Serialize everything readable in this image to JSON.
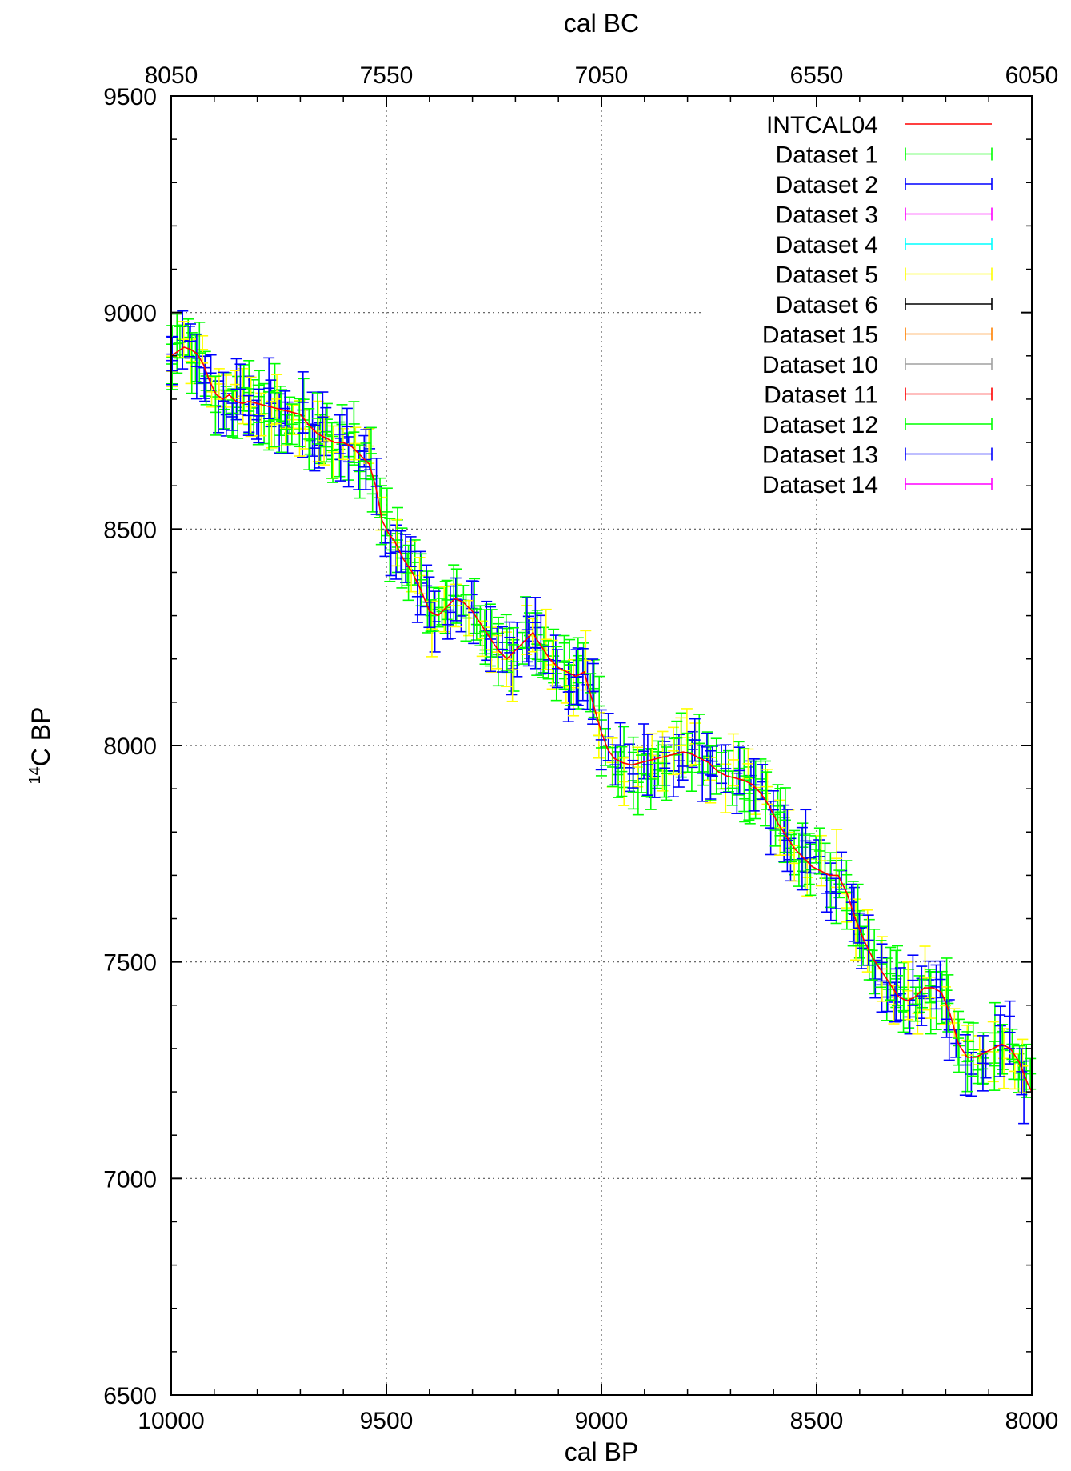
{
  "chart_data": {
    "type": "line",
    "xlabel": "cal BP",
    "x2label": "cal BC",
    "ylabel_main": "C BP",
    "ylabel_sup": "14",
    "xlim": [
      10000,
      8000
    ],
    "ylim": [
      6500,
      9500
    ],
    "x_ticks": [
      10000,
      9500,
      9000,
      8500,
      8000
    ],
    "x2_ticks": [
      8050,
      7550,
      7050,
      6550,
      6050
    ],
    "y_ticks": [
      6500,
      7000,
      7500,
      8000,
      8500,
      9000,
      9500
    ],
    "grid": true,
    "legend_position": "top-right",
    "series": [
      {
        "name": "INTCAL04",
        "color": "#ff0000",
        "kind": "line",
        "x": [
          10000,
          9985,
          9970,
          9955,
          9940,
          9925,
          9910,
          9895,
          9880,
          9865,
          9850,
          9835,
          9820,
          9800,
          9780,
          9760,
          9740,
          9720,
          9700,
          9680,
          9660,
          9640,
          9620,
          9600,
          9580,
          9560,
          9540,
          9525,
          9510,
          9495,
          9480,
          9460,
          9440,
          9420,
          9400,
          9380,
          9360,
          9340,
          9320,
          9300,
          9280,
          9260,
          9240,
          9220,
          9200,
          9180,
          9160,
          9140,
          9120,
          9100,
          9080,
          9060,
          9040,
          9020,
          9000,
          8985,
          8970,
          8950,
          8930,
          8910,
          8890,
          8870,
          8850,
          8830,
          8810,
          8790,
          8770,
          8750,
          8730,
          8710,
          8690,
          8670,
          8650,
          8630,
          8610,
          8590,
          8570,
          8550,
          8530,
          8510,
          8490,
          8470,
          8450,
          8430,
          8410,
          8390,
          8370,
          8350,
          8330,
          8310,
          8290,
          8270,
          8250,
          8230,
          8210,
          8190,
          8170,
          8150,
          8130,
          8110,
          8090,
          8070,
          8050,
          8030,
          8010,
          8000
        ],
        "y": [
          8900,
          8910,
          8920,
          8915,
          8905,
          8880,
          8840,
          8810,
          8800,
          8810,
          8795,
          8790,
          8795,
          8790,
          8785,
          8780,
          8775,
          8770,
          8765,
          8740,
          8720,
          8710,
          8700,
          8700,
          8690,
          8670,
          8650,
          8600,
          8520,
          8490,
          8470,
          8430,
          8400,
          8360,
          8310,
          8300,
          8320,
          8340,
          8330,
          8310,
          8280,
          8250,
          8220,
          8200,
          8220,
          8240,
          8260,
          8230,
          8200,
          8180,
          8170,
          8160,
          8170,
          8100,
          8030,
          7990,
          7970,
          7960,
          7955,
          7960,
          7965,
          7970,
          7975,
          7980,
          7985,
          7980,
          7970,
          7960,
          7940,
          7930,
          7925,
          7920,
          7910,
          7890,
          7860,
          7820,
          7790,
          7760,
          7740,
          7720,
          7710,
          7700,
          7700,
          7660,
          7600,
          7550,
          7510,
          7480,
          7450,
          7420,
          7410,
          7420,
          7440,
          7440,
          7430,
          7380,
          7310,
          7280,
          7280,
          7290,
          7300,
          7310,
          7300,
          7270,
          7220,
          7200
        ]
      },
      {
        "name": "Dataset 1",
        "color": "#00ff00",
        "kind": "errorbar",
        "seed": 11,
        "density": 6
      },
      {
        "name": "Dataset 2",
        "color": "#0000ff",
        "kind": "errorbar",
        "seed": 23,
        "density": 5
      },
      {
        "name": "Dataset 3",
        "color": "#ff00ff",
        "kind": "errorbar",
        "seed": 37,
        "density": 0
      },
      {
        "name": "Dataset 4",
        "color": "#00ffff",
        "kind": "errorbar",
        "seed": 41,
        "density": 0
      },
      {
        "name": "Dataset 5",
        "color": "#ffff00",
        "kind": "errorbar",
        "seed": 53,
        "density": 5
      },
      {
        "name": "Dataset 6",
        "color": "#000000",
        "kind": "errorbar",
        "seed": 61,
        "density": 0
      },
      {
        "name": "Dataset 15",
        "color": "#ff8000",
        "kind": "errorbar",
        "seed": 71,
        "density": 0
      },
      {
        "name": "Dataset 10",
        "color": "#a0a0a0",
        "kind": "errorbar",
        "seed": 83,
        "density": 0
      },
      {
        "name": "Dataset 11",
        "color": "#ff0000",
        "kind": "errorbar",
        "seed": 97,
        "density": 0
      },
      {
        "name": "Dataset 12",
        "color": "#00ff00",
        "kind": "errorbar",
        "seed": 101,
        "density": 6
      },
      {
        "name": "Dataset 13",
        "color": "#0000ff",
        "kind": "errorbar",
        "seed": 113,
        "density": 4
      },
      {
        "name": "Dataset 14",
        "color": "#ff00ff",
        "kind": "errorbar",
        "seed": 127,
        "density": 0
      }
    ]
  }
}
